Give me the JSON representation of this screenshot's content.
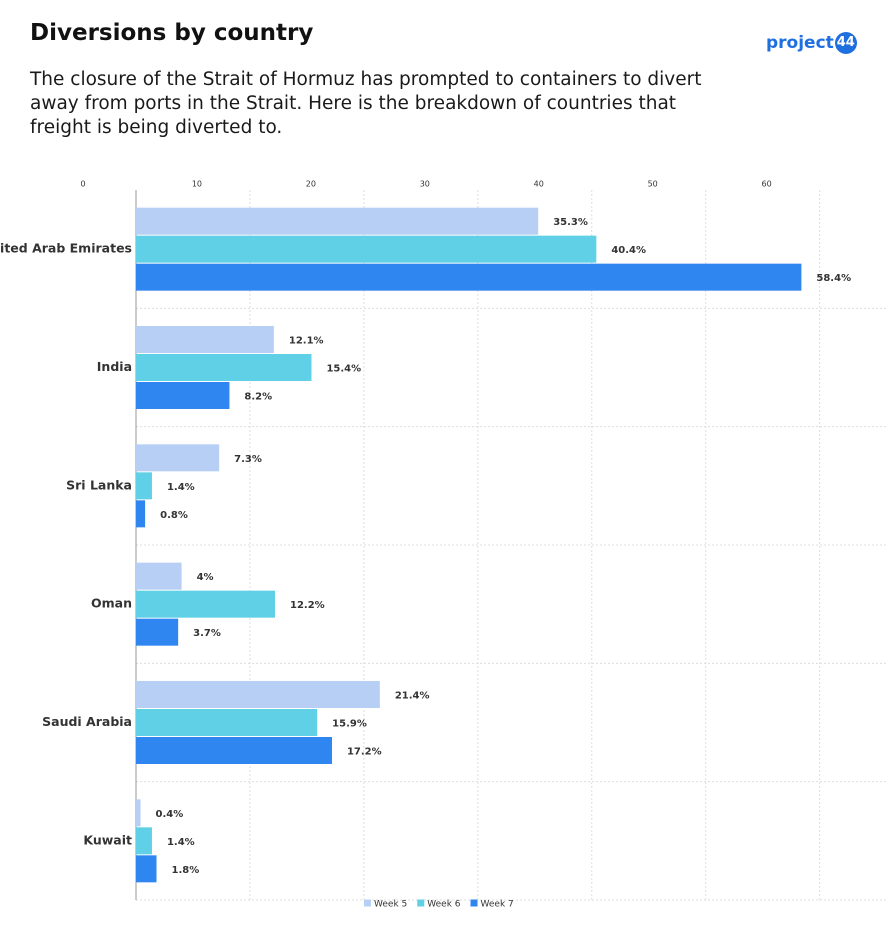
{
  "logo": {
    "text": "project",
    "badge": "44"
  },
  "chart_data": {
    "type": "bar",
    "orientation": "horizontal",
    "title": "Diversions by country",
    "subtitle": "The closure of the Strait of Hormuz has prompted to containers to divert away from ports in the Strait. Here is the breakdown of countries that freight is being diverted to.",
    "categories": [
      "United Arab Emirates",
      "India",
      "Sri Lanka",
      "Oman",
      "Saudi Arabia",
      "Kuwait"
    ],
    "series": [
      {
        "name": "Week 5",
        "color": "#b8cff5",
        "values": [
          35.3,
          12.1,
          7.3,
          4,
          21.4,
          0.4
        ],
        "value_labels": [
          "35.3%",
          "12.1%",
          "7.3%",
          "4%",
          "21.4%",
          "0.4%"
        ]
      },
      {
        "name": "Week 6",
        "color": "#5fd0e6",
        "values": [
          40.4,
          15.4,
          1.4,
          12.2,
          15.9,
          1.4
        ],
        "value_labels": [
          "40.4%",
          "15.4%",
          "1.4%",
          "12.2%",
          "15.9%",
          "1.4%"
        ]
      },
      {
        "name": "Week 7",
        "color": "#2f86f0",
        "values": [
          58.4,
          8.2,
          0.8,
          3.7,
          17.2,
          1.8
        ],
        "value_labels": [
          "58.4%",
          "8.2%",
          "0.8%",
          "3.7%",
          "17.2%",
          "1.8%"
        ]
      }
    ],
    "xlim": [
      0,
      66
    ],
    "xticks": [
      0,
      10,
      20,
      30,
      40,
      50,
      60
    ],
    "grid": true,
    "legend": "bottom"
  }
}
